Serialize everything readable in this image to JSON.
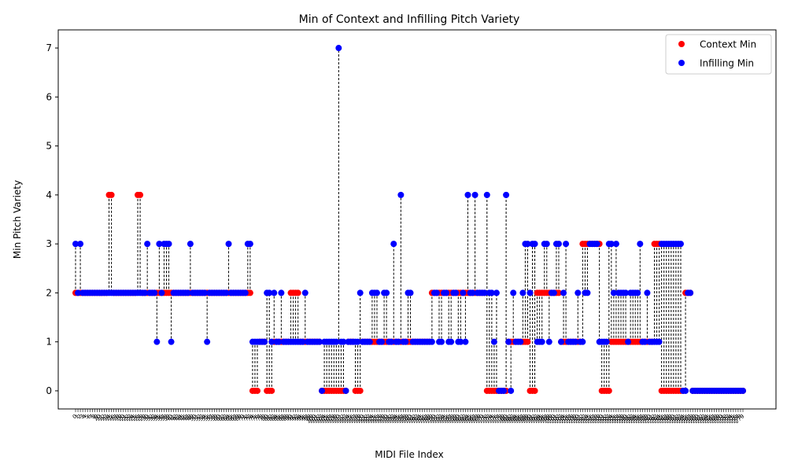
{
  "chart_data": {
    "type": "scatter",
    "title": "Min of Context and Infilling Pitch Variety",
    "xlabel": "MIDI File Index",
    "ylabel": "Min Pitch Variety",
    "ylim": [
      -0.37,
      7.37
    ],
    "yticks": [
      0,
      1,
      2,
      3,
      4,
      5,
      6,
      7
    ],
    "n_points": 280,
    "legend_position": "upper-right",
    "connectors": "dashed black vertical line between context and infilling value at each index",
    "legend": [
      {
        "label": "Context Min",
        "color": "#ff0000"
      },
      {
        "label": "Infilling Min",
        "color": "#0000ff"
      }
    ],
    "series": [
      {
        "name": "Context Min",
        "color": "#ff0000",
        "runs": [
          [
            0,
            2,
            2
          ],
          [
            2,
            2,
            2
          ],
          [
            3,
            10,
            2
          ],
          [
            14,
            15,
            4
          ],
          [
            16,
            26,
            2
          ],
          [
            26,
            28,
            4
          ],
          [
            28,
            33,
            2
          ],
          [
            34,
            38,
            2
          ],
          [
            39,
            42,
            2
          ],
          [
            43,
            46,
            2
          ],
          [
            47,
            51,
            2
          ],
          [
            52,
            55,
            2
          ],
          [
            56,
            66,
            2
          ],
          [
            67,
            71,
            2
          ],
          [
            72,
            73,
            2
          ],
          [
            74,
            76,
            0
          ],
          [
            77,
            79,
            1
          ],
          [
            80,
            82,
            0
          ],
          [
            83,
            84,
            1
          ],
          [
            85,
            89,
            1
          ],
          [
            90,
            93,
            2
          ],
          [
            94,
            102,
            1
          ],
          [
            103,
            110,
            0
          ],
          [
            111,
            113,
            0
          ],
          [
            114,
            116,
            1
          ],
          [
            117,
            119,
            0
          ],
          [
            120,
            124,
            1
          ],
          [
            125,
            129,
            1
          ],
          [
            130,
            134,
            1
          ],
          [
            135,
            140,
            1
          ],
          [
            141,
            149,
            1
          ],
          [
            149,
            150,
            2
          ],
          [
            151,
            155,
            2
          ],
          [
            156,
            159,
            2
          ],
          [
            160,
            163,
            2
          ],
          [
            164,
            171,
            2
          ],
          [
            172,
            173,
            0
          ],
          [
            174,
            176,
            0
          ],
          [
            177,
            180,
            0
          ],
          [
            181,
            183,
            1
          ],
          [
            184,
            186,
            1
          ],
          [
            187,
            189,
            1
          ],
          [
            190,
            192,
            0
          ],
          [
            193,
            195,
            2
          ],
          [
            196,
            199,
            2
          ],
          [
            200,
            203,
            2
          ],
          [
            203,
            205,
            1
          ],
          [
            206,
            208,
            1
          ],
          [
            209,
            211,
            1
          ],
          [
            212,
            214,
            3
          ],
          [
            215,
            219,
            3
          ],
          [
            220,
            223,
            0
          ],
          [
            224,
            227,
            1
          ],
          [
            228,
            231,
            1
          ],
          [
            232,
            235,
            1
          ],
          [
            236,
            241,
            1
          ],
          [
            242,
            244,
            3
          ],
          [
            245,
            246,
            0
          ],
          [
            247,
            254,
            0
          ],
          [
            255,
            257,
            2
          ],
          [
            258,
            280,
            0
          ]
        ]
      },
      {
        "name": "Infilling Min",
        "color": "#0000ff",
        "runs": [
          [
            0,
            1,
            3
          ],
          [
            1,
            2,
            2
          ],
          [
            2,
            3,
            3
          ],
          [
            3,
            14,
            2
          ],
          [
            14,
            16,
            2
          ],
          [
            16,
            26,
            2
          ],
          [
            26,
            28,
            2
          ],
          [
            28,
            30,
            2
          ],
          [
            30,
            31,
            3
          ],
          [
            31,
            34,
            2
          ],
          [
            34,
            35,
            1
          ],
          [
            35,
            36,
            3
          ],
          [
            36,
            37,
            2
          ],
          [
            37,
            39,
            3
          ],
          [
            39,
            40,
            3
          ],
          [
            40,
            41,
            1
          ],
          [
            41,
            48,
            2
          ],
          [
            48,
            49,
            3
          ],
          [
            49,
            55,
            2
          ],
          [
            55,
            56,
            1
          ],
          [
            56,
            64,
            2
          ],
          [
            64,
            65,
            3
          ],
          [
            65,
            72,
            2
          ],
          [
            72,
            74,
            3
          ],
          [
            74,
            80,
            1
          ],
          [
            80,
            82,
            2
          ],
          [
            82,
            83,
            1
          ],
          [
            83,
            84,
            2
          ],
          [
            84,
            86,
            1
          ],
          [
            86,
            87,
            2
          ],
          [
            87,
            96,
            1
          ],
          [
            96,
            97,
            2
          ],
          [
            97,
            103,
            1
          ],
          [
            103,
            104,
            0
          ],
          [
            104,
            110,
            1
          ],
          [
            110,
            111,
            7
          ],
          [
            111,
            113,
            1
          ],
          [
            113,
            114,
            0
          ],
          [
            114,
            119,
            1
          ],
          [
            119,
            120,
            2
          ],
          [
            120,
            124,
            1
          ],
          [
            124,
            127,
            2
          ],
          [
            127,
            129,
            1
          ],
          [
            129,
            131,
            2
          ],
          [
            131,
            133,
            1
          ],
          [
            133,
            134,
            3
          ],
          [
            134,
            136,
            1
          ],
          [
            136,
            137,
            4
          ],
          [
            137,
            139,
            1
          ],
          [
            139,
            141,
            2
          ],
          [
            141,
            150,
            1
          ],
          [
            150,
            152,
            2
          ],
          [
            152,
            154,
            1
          ],
          [
            154,
            156,
            2
          ],
          [
            156,
            158,
            1
          ],
          [
            158,
            160,
            2
          ],
          [
            160,
            162,
            1
          ],
          [
            162,
            163,
            2
          ],
          [
            163,
            164,
            1
          ],
          [
            164,
            165,
            4
          ],
          [
            165,
            167,
            2
          ],
          [
            167,
            168,
            4
          ],
          [
            168,
            172,
            2
          ],
          [
            172,
            173,
            4
          ],
          [
            173,
            175,
            2
          ],
          [
            175,
            176,
            1
          ],
          [
            176,
            177,
            2
          ],
          [
            177,
            180,
            0
          ],
          [
            180,
            181,
            4
          ],
          [
            181,
            182,
            1
          ],
          [
            182,
            183,
            0
          ],
          [
            183,
            184,
            2
          ],
          [
            184,
            187,
            1
          ],
          [
            187,
            188,
            2
          ],
          [
            188,
            190,
            3
          ],
          [
            190,
            191,
            2
          ],
          [
            191,
            193,
            3
          ],
          [
            193,
            196,
            1
          ],
          [
            196,
            198,
            3
          ],
          [
            198,
            199,
            1
          ],
          [
            199,
            201,
            2
          ],
          [
            201,
            203,
            3
          ],
          [
            203,
            204,
            1
          ],
          [
            204,
            205,
            2
          ],
          [
            205,
            206,
            3
          ],
          [
            206,
            208,
            1
          ],
          [
            208,
            210,
            1
          ],
          [
            210,
            211,
            2
          ],
          [
            211,
            213,
            1
          ],
          [
            213,
            215,
            2
          ],
          [
            215,
            219,
            3
          ],
          [
            219,
            223,
            1
          ],
          [
            223,
            225,
            3
          ],
          [
            225,
            226,
            2
          ],
          [
            226,
            227,
            3
          ],
          [
            227,
            231,
            2
          ],
          [
            231,
            232,
            1
          ],
          [
            232,
            236,
            2
          ],
          [
            236,
            237,
            3
          ],
          [
            237,
            239,
            1
          ],
          [
            239,
            240,
            2
          ],
          [
            240,
            241,
            1
          ],
          [
            241,
            245,
            1
          ],
          [
            245,
            254,
            3
          ],
          [
            254,
            256,
            0
          ],
          [
            256,
            258,
            2
          ],
          [
            258,
            280,
            0
          ]
        ]
      }
    ]
  }
}
